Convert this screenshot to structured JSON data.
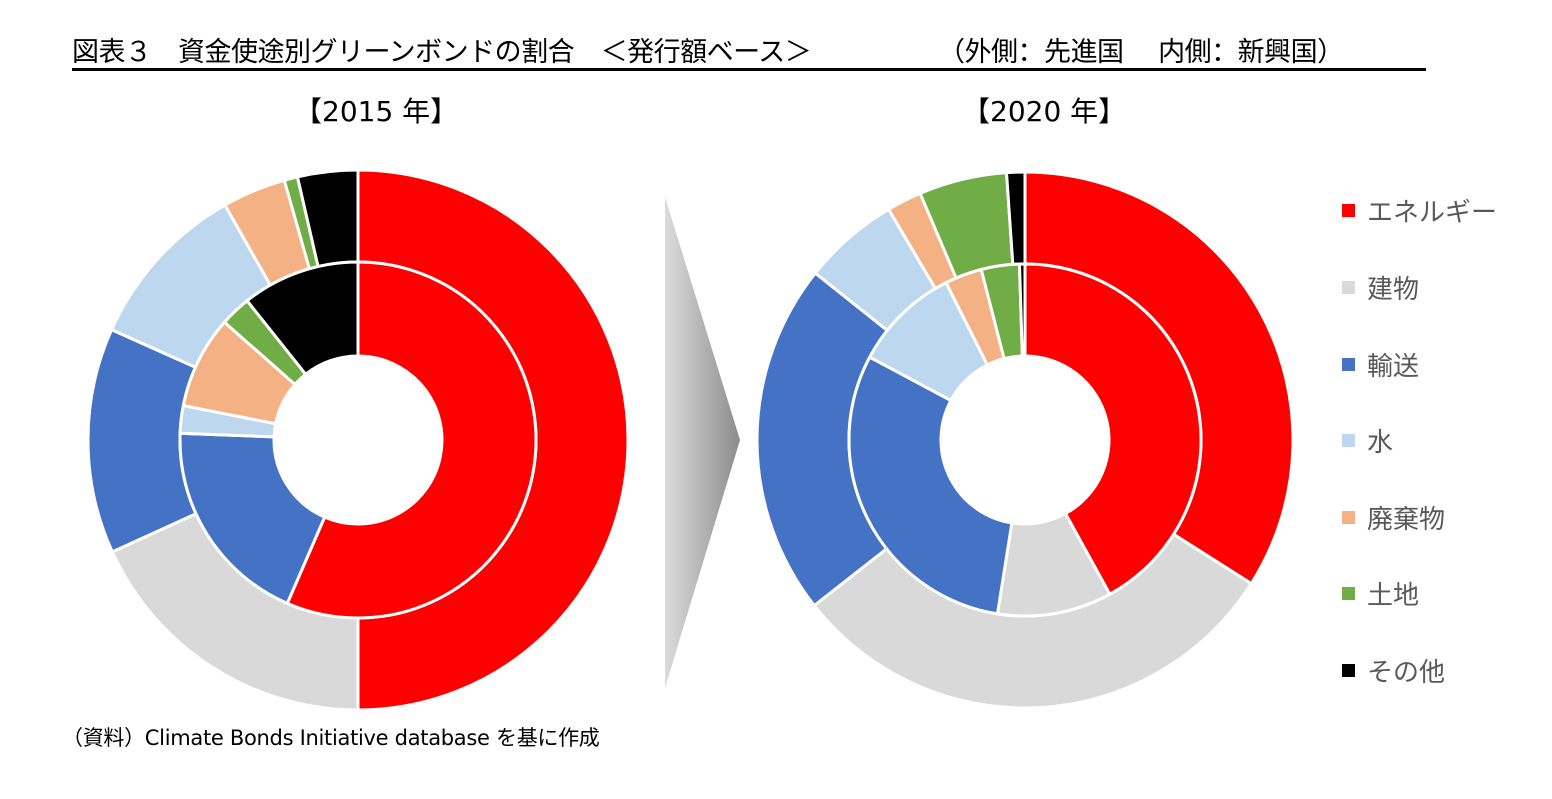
{
  "title": {
    "main": "図表３　資金使途別グリーンボンドの割合　＜発行額ベース＞",
    "sub": "（外側：先進国　 内側：新興国）"
  },
  "years": {
    "left": "【2015 年】",
    "right": "【2020 年】"
  },
  "legend": [
    {
      "label": "エネルギー",
      "color": "#FF0000"
    },
    {
      "label": "建物",
      "color": "#D9D9D9"
    },
    {
      "label": "輸送",
      "color": "#4472C4"
    },
    {
      "label": "水",
      "color": "#BDD7EE"
    },
    {
      "label": "廃棄物",
      "color": "#F4B183"
    },
    {
      "label": "土地",
      "color": "#70AD47"
    },
    {
      "label": "その他",
      "color": "#000000"
    }
  ],
  "source": "（資料）Climate Bonds Initiative database を基に作成",
  "arrow": {
    "icon": "right-arrow-icon"
  },
  "chart_data": [
    {
      "type": "pie",
      "subtype": "doughnut-two-ring",
      "title": "【2015 年】",
      "categories": [
        "エネルギー",
        "建物",
        "輸送",
        "水",
        "廃棄物",
        "土地",
        "その他"
      ],
      "colors": [
        "#FF0000",
        "#D9D9D9",
        "#4472C4",
        "#BDD7EE",
        "#F4B183",
        "#70AD47",
        "#000000"
      ],
      "series": [
        {
          "name": "外側：先進国",
          "ring": "outer",
          "values": [
            50.0,
            18.2,
            13.5,
            10.1,
            3.8,
            0.8,
            3.6
          ]
        },
        {
          "name": "内側：新興国",
          "ring": "inner",
          "values": [
            56.5,
            0.0,
            19.1,
            2.5,
            8.4,
            2.8,
            10.7
          ]
        }
      ],
      "unit": "%",
      "legend_position": "right"
    },
    {
      "type": "pie",
      "subtype": "doughnut-two-ring",
      "title": "【2020 年】",
      "categories": [
        "エネルギー",
        "建物",
        "輸送",
        "水",
        "廃棄物",
        "土地",
        "その他"
      ],
      "colors": [
        "#FF0000",
        "#D9D9D9",
        "#4472C4",
        "#BDD7EE",
        "#F4B183",
        "#70AD47",
        "#000000"
      ],
      "series": [
        {
          "name": "外側：先進国",
          "ring": "outer",
          "values": [
            34.0,
            30.4,
            21.3,
            5.8,
            2.1,
            5.3,
            1.1
          ]
        },
        {
          "name": "内側：新興国",
          "ring": "inner",
          "values": [
            42.0,
            10.5,
            30.3,
            9.8,
            3.4,
            3.5,
            0.5
          ]
        }
      ],
      "unit": "%",
      "legend_position": "right"
    }
  ]
}
